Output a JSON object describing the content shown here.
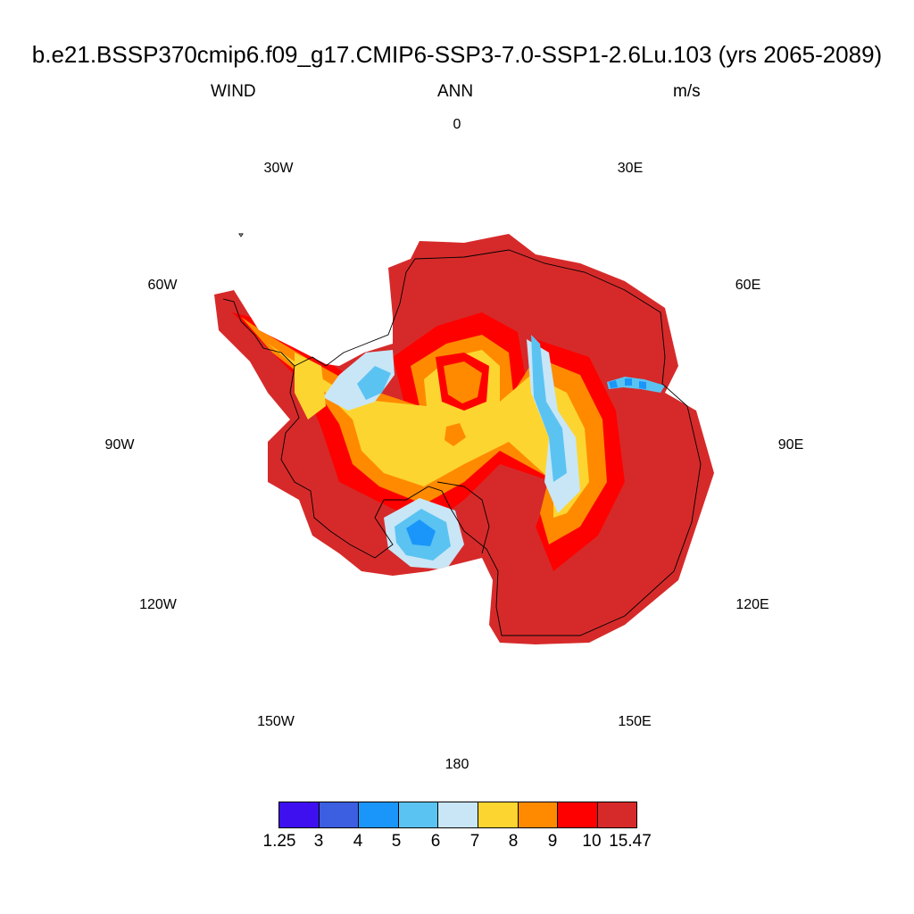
{
  "title": "b.e21.BSSP370cmip6.f09_g17.CMIP6-SSP3-7.0-SSP1-2.6Lu.103 (yrs 2065-2089)",
  "variable": "WIND",
  "season": "ANN",
  "units": "m/s",
  "longitude_labels": {
    "lon_0": "0",
    "lon_30e": "30E",
    "lon_60e": "60E",
    "lon_90e": "90E",
    "lon_120e": "120E",
    "lon_150e": "150E",
    "lon_180": "180",
    "lon_150w": "150W",
    "lon_120w": "120W",
    "lon_90w": "90W",
    "lon_60w": "60W",
    "lon_30w": "30W"
  },
  "colorbar": {
    "colors": [
      "#3e10f0",
      "#3b5fe0",
      "#1a96fa",
      "#5bc3f2",
      "#c8e6f6",
      "#fdd530",
      "#ff8a00",
      "#ff0000",
      "#d62a2a"
    ],
    "labels": [
      "1.25",
      "3",
      "4",
      "5",
      "6",
      "7",
      "8",
      "9",
      "10",
      "15.47"
    ]
  }
}
